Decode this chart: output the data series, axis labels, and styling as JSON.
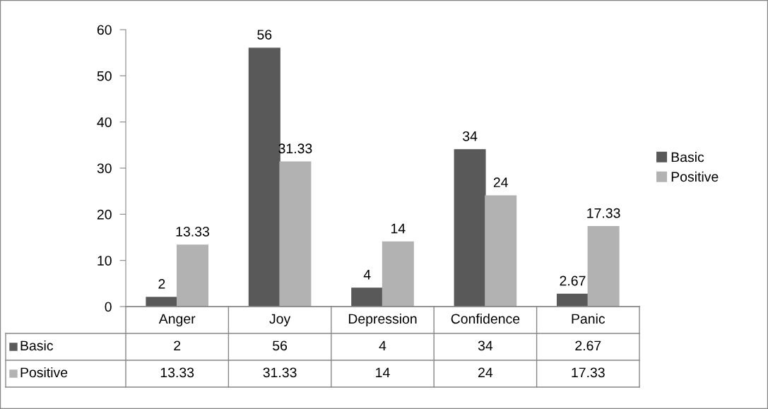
{
  "chart_data": {
    "type": "bar",
    "categories": [
      "Anger",
      "Joy",
      "Depression",
      "Confidence",
      "Panic"
    ],
    "series": [
      {
        "name": "Basic",
        "color": "#595959",
        "values": [
          2,
          56,
          4,
          34,
          2.67
        ]
      },
      {
        "name": "Positive",
        "color": "#b2b2b2",
        "values": [
          13.33,
          31.33,
          14,
          24,
          17.33
        ]
      }
    ],
    "annotations": [
      {
        "text": "2",
        "x": "Anger",
        "y": 2
      },
      {
        "text": "13.33",
        "x": "Anger",
        "y": 13.33
      },
      {
        "text": "56",
        "x": "Joy",
        "y": 56
      },
      {
        "text": "31.33",
        "x": "Joy",
        "y": 31.33
      },
      {
        "text": "4",
        "x": "Depression",
        "y": 4
      },
      {
        "text": "14",
        "x": "Depression",
        "y": 14
      },
      {
        "text": "34",
        "x": "Confidence",
        "y": 34
      },
      {
        "text": "24",
        "x": "Confidence",
        "y": 24
      },
      {
        "text": "2.67",
        "x": "Panic",
        "y": 2.67
      },
      {
        "text": "17.33",
        "x": "Panic",
        "y": 17.33
      }
    ],
    "ylim": [
      0,
      60
    ],
    "yticks": [
      0,
      10,
      20,
      30,
      40,
      50,
      60
    ],
    "grid": false,
    "legend": "right",
    "data_labels": true
  }
}
